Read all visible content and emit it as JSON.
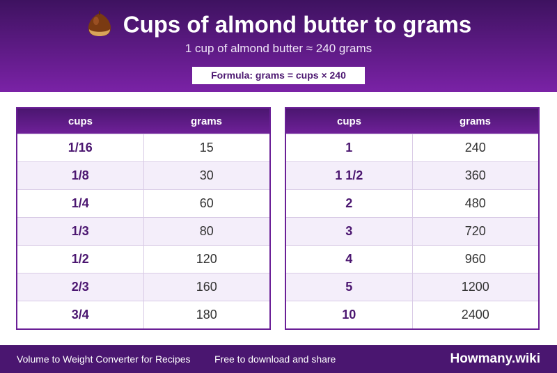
{
  "header": {
    "title": "Cups of almond butter to grams",
    "subtitle": "1 cup of almond butter ≈ 240 grams",
    "formula": "Formula: grams = cups × 240"
  },
  "tables": [
    {
      "columns": [
        "cups",
        "grams"
      ],
      "rows": [
        [
          "1/16",
          15
        ],
        [
          "1/8",
          30
        ],
        [
          "1/4",
          60
        ],
        [
          "1/3",
          80
        ],
        [
          "1/2",
          120
        ],
        [
          "2/3",
          160
        ],
        [
          "3/4",
          180
        ]
      ]
    },
    {
      "columns": [
        "cups",
        "grams"
      ],
      "rows": [
        [
          "1",
          240
        ],
        [
          "1 1/2",
          360
        ],
        [
          "2",
          480
        ],
        [
          "3",
          720
        ],
        [
          "4",
          960
        ],
        [
          "5",
          1200
        ],
        [
          "10",
          2400
        ]
      ]
    }
  ],
  "footer": {
    "left": "Volume to Weight Converter for Recipes",
    "middle": "Free to download and share",
    "brand": "Howmany.wiki"
  }
}
